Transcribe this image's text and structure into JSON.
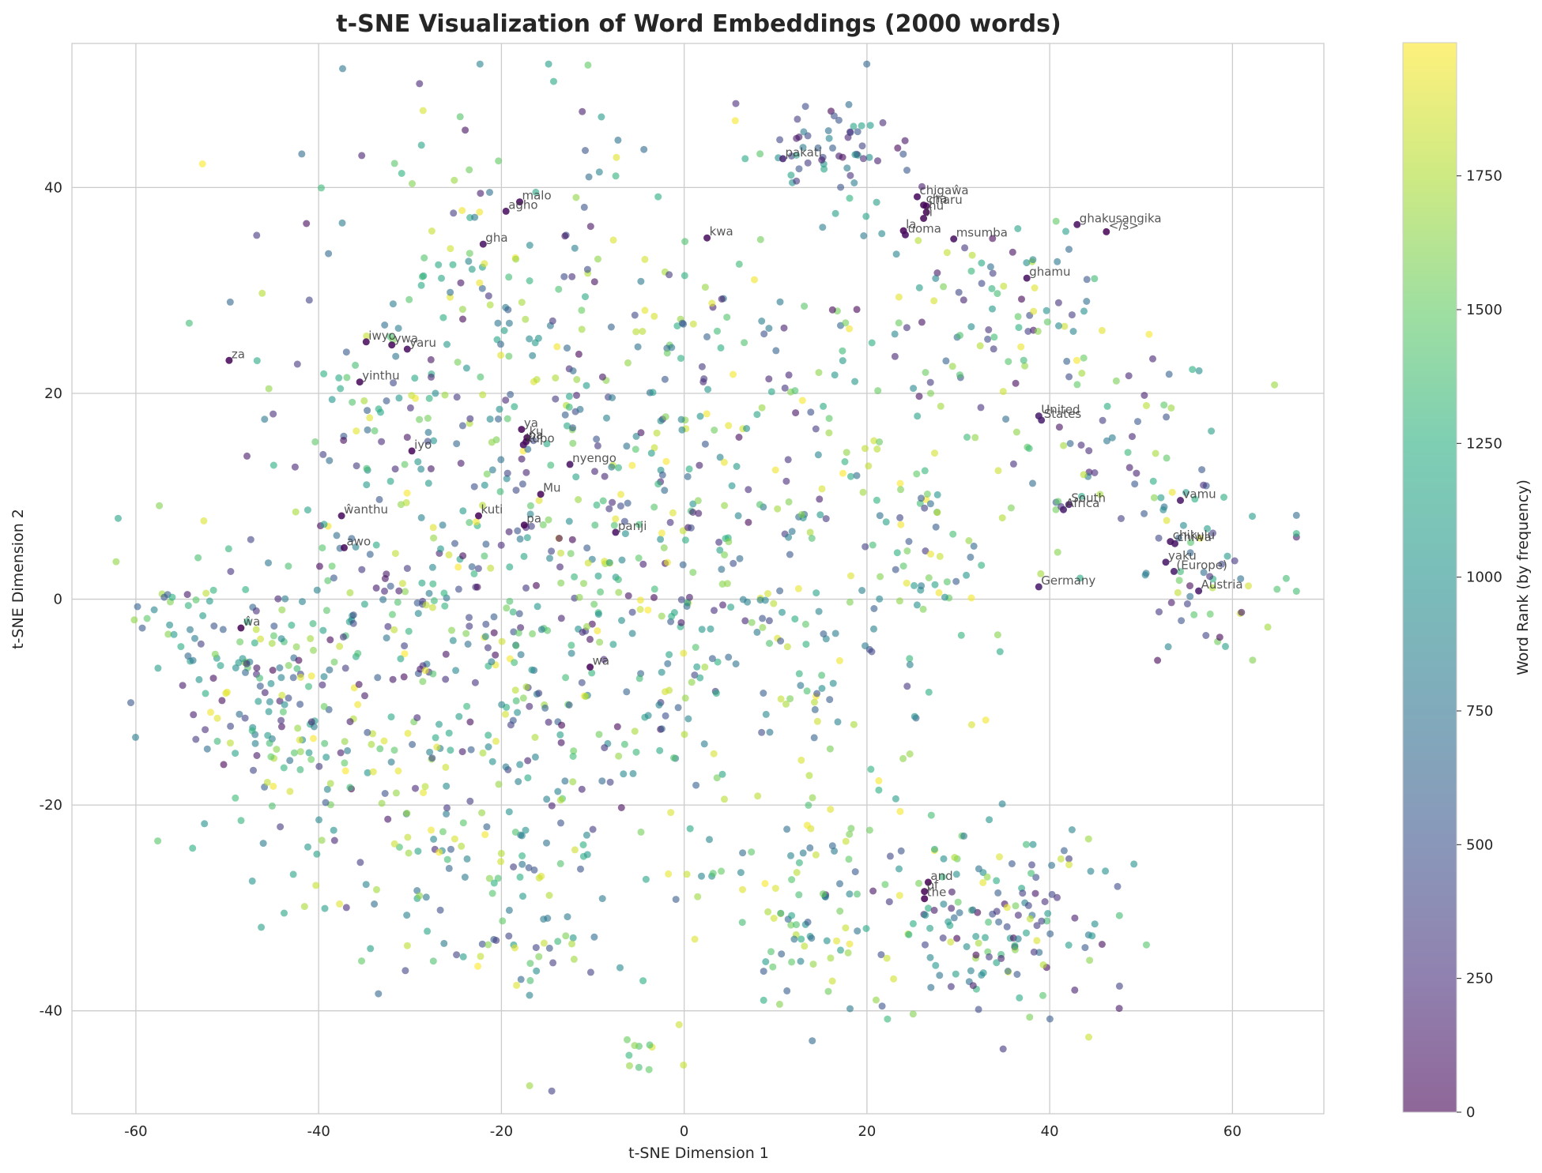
{
  "chart_data": {
    "type": "scatter",
    "title": "t-SNE Visualization of Word Embeddings (2000 words)",
    "xlabel": "t-SNE Dimension 1",
    "ylabel": "t-SNE Dimension 2",
    "xlim": [
      -67,
      70
    ],
    "ylim": [
      -50,
      54
    ],
    "x_ticks": [
      -60,
      -40,
      -20,
      0,
      20,
      40,
      60
    ],
    "y_ticks": [
      -40,
      -20,
      0,
      20,
      40
    ],
    "x_tick_labels": [
      "-60",
      "-40",
      "-20",
      "0",
      "20",
      "40",
      "60"
    ],
    "y_tick_labels": [
      "-40",
      "-20",
      "0",
      "20",
      "40"
    ],
    "grid": true,
    "colorbar": {
      "label": "Word Rank (by frequency)",
      "colormap": "viridis",
      "range": [
        0,
        1999
      ],
      "ticks": [
        0,
        250,
        500,
        750,
        1000,
        1250,
        1500,
        1750
      ],
      "tick_labels": [
        "0",
        "250",
        "500",
        "750",
        "1000",
        "1250",
        "1500",
        "1750"
      ]
    },
    "point_count": 2000,
    "marker_alpha": 0.6,
    "clusters": [
      {
        "cx": -22,
        "cy": 22,
        "sx": 12,
        "sy": 14,
        "n": 260,
        "rank": [
          0,
          1999
        ]
      },
      {
        "cx": -28,
        "cy": -8,
        "sx": 12,
        "sy": 12,
        "n": 300,
        "rank": [
          0,
          1999
        ]
      },
      {
        "cx": -8,
        "cy": 2,
        "sx": 10,
        "sy": 14,
        "n": 220,
        "rank": [
          0,
          1999
        ]
      },
      {
        "cx": 10,
        "cy": 20,
        "sx": 9,
        "sy": 12,
        "n": 130,
        "rank": [
          0,
          1999
        ]
      },
      {
        "cx": 17,
        "cy": 44,
        "sx": 3.5,
        "sy": 2.2,
        "n": 55,
        "rank": [
          0,
          1200
        ]
      },
      {
        "cx": 33,
        "cy": 27,
        "sx": 7,
        "sy": 5,
        "n": 90,
        "rank": [
          0,
          1999
        ]
      },
      {
        "cx": 48,
        "cy": 14,
        "sx": 6,
        "sy": 5,
        "n": 60,
        "rank": [
          0,
          1999
        ]
      },
      {
        "cx": 57,
        "cy": 2,
        "sx": 5,
        "sy": 4,
        "n": 50,
        "rank": [
          0,
          1999
        ]
      },
      {
        "cx": 35,
        "cy": -31,
        "sx": 7,
        "sy": 5,
        "n": 150,
        "rank": [
          0,
          1999
        ]
      },
      {
        "cx": 13,
        "cy": -30,
        "sx": 6,
        "sy": 5,
        "n": 90,
        "rank": [
          500,
          1999
        ]
      },
      {
        "cx": 12,
        "cy": -5,
        "sx": 8,
        "sy": 8,
        "n": 110,
        "rank": [
          300,
          1999
        ]
      },
      {
        "cx": -45,
        "cy": -10,
        "sx": 5,
        "sy": 7,
        "n": 110,
        "rank": [
          0,
          1999
        ]
      },
      {
        "cx": -20,
        "cy": -30,
        "sx": 8,
        "sy": 6,
        "n": 90,
        "rank": [
          300,
          1999
        ]
      },
      {
        "cx": 27,
        "cy": 5,
        "sx": 5,
        "sy": 4,
        "n": 50,
        "rank": [
          300,
          1999
        ]
      },
      {
        "cx": -55,
        "cy": -2,
        "sx": 4,
        "sy": 3,
        "n": 35,
        "rank": [
          500,
          1800
        ]
      },
      {
        "cx": -5,
        "cy": -44,
        "sx": 2,
        "sy": 1.5,
        "n": 10,
        "rank": [
          1200,
          1900
        ]
      }
    ],
    "annotations": [
      {
        "text": "pakati",
        "x": 10.8,
        "y": 42.8,
        "rank": 200
      },
      {
        "text": "malo",
        "x": -18,
        "y": 38.6,
        "rank": 40
      },
      {
        "text": "agho",
        "x": -19.5,
        "y": 37.7,
        "rank": 50
      },
      {
        "text": "gha",
        "x": -22,
        "y": 34.5,
        "rank": 80
      },
      {
        "text": "kwa",
        "x": 2.5,
        "y": 35.1,
        "rank": 60
      },
      {
        "text": "chigaŵa",
        "x": 25.5,
        "y": 39.1,
        "rank": 30
      },
      {
        "text": "cha",
        "x": 26.2,
        "y": 38.3,
        "rank": 8
      },
      {
        "text": "charu",
        "x": 26.5,
        "y": 38.2,
        "rank": 20
      },
      {
        "text": "nu",
        "x": 26.5,
        "y": 37.6,
        "rank": 15
      },
      {
        "text": "li",
        "x": 26.2,
        "y": 37.0,
        "rank": 25
      },
      {
        "text": "la",
        "x": 24,
        "y": 35.8,
        "rank": 12
      },
      {
        "text": "uoma",
        "x": 24.2,
        "y": 35.4,
        "rank": 70
      },
      {
        "text": "msumba",
        "x": 29.5,
        "y": 35.0,
        "rank": 90
      },
      {
        "text": "ghakusangika",
        "x": 43,
        "y": 36.4,
        "rank": 60
      },
      {
        "text": "</s>",
        "x": 46.2,
        "y": 35.7,
        "rank": 1
      },
      {
        "text": "ghamu",
        "x": 37.5,
        "y": 31.2,
        "rank": 70
      },
      {
        "text": "iwyo",
        "x": -34.8,
        "y": 25,
        "rank": 45
      },
      {
        "text": "ywa",
        "x": -32,
        "y": 24.7,
        "rank": 30
      },
      {
        "text": "yaru",
        "x": -30.3,
        "y": 24.3,
        "rank": 55
      },
      {
        "text": "za",
        "x": -49.8,
        "y": 23.2,
        "rank": 10
      },
      {
        "text": "yinthu",
        "x": -35.5,
        "y": 21.1,
        "rank": 35
      },
      {
        "text": "United",
        "x": 38.8,
        "y": 17.8,
        "rank": 150
      },
      {
        "text": "States",
        "x": 39.1,
        "y": 17.4,
        "rank": 160
      },
      {
        "text": "ya",
        "x": -17.8,
        "y": 16.5,
        "rank": 5
      },
      {
        "text": "ku",
        "x": -17.2,
        "y": 15.7,
        "rank": 6
      },
      {
        "text": "pa",
        "x": -17.3,
        "y": 15.3,
        "rank": 22
      },
      {
        "text": "kupo",
        "x": -17.6,
        "y": 15.0,
        "rank": 65
      },
      {
        "text": "nyengo",
        "x": -12.5,
        "y": 13.1,
        "rank": 85
      },
      {
        "text": "iyo",
        "x": -29.8,
        "y": 14.4,
        "rank": 28
      },
      {
        "text": "Mu",
        "x": -15.7,
        "y": 10.2,
        "rank": 18
      },
      {
        "text": "South",
        "x": 42.1,
        "y": 9.2,
        "rank": 140
      },
      {
        "text": "Africa",
        "x": 41.5,
        "y": 8.7,
        "rank": 145
      },
      {
        "text": "vamu",
        "x": 54.3,
        "y": 9.6,
        "rank": 100
      },
      {
        "text": "ŵanthu",
        "x": -37.5,
        "y": 8.1,
        "rank": 40
      },
      {
        "text": "kuti",
        "x": -22.5,
        "y": 8.1,
        "rank": 14
      },
      {
        "text": "pa",
        "x": -17.5,
        "y": 7.2,
        "rank": 22
      },
      {
        "text": "panji",
        "x": -7.5,
        "y": 6.5,
        "rank": 75
      },
      {
        "text": "chikulu",
        "x": 53.2,
        "y": 5.6,
        "rank": 90
      },
      {
        "text": "chiwa",
        "x": 53.7,
        "y": 5.4,
        "rank": 100
      },
      {
        "text": "awo",
        "x": -37.2,
        "y": 5.0,
        "rank": 35
      },
      {
        "text": "yaku",
        "x": 52.7,
        "y": 3.6,
        "rank": 110
      },
      {
        "text": "(Europe)",
        "x": 53.6,
        "y": 2.7,
        "rank": 130
      },
      {
        "text": "Germany",
        "x": 38.8,
        "y": 1.2,
        "rank": 120
      },
      {
        "text": "Austria",
        "x": 56.3,
        "y": 0.8,
        "rank": 125
      },
      {
        "text": "ŵa",
        "x": -48.5,
        "y": -2.8,
        "rank": 9
      },
      {
        "text": "wa",
        "x": -10.3,
        "y": -6.6,
        "rank": 4
      },
      {
        "text": "and",
        "x": 26.7,
        "y": -27.5,
        "rank": 2
      },
      {
        "text": "of",
        "x": 26.3,
        "y": -28.4,
        "rank": 3
      },
      {
        "text": "the",
        "x": 26.3,
        "y": -29.1,
        "rank": 1
      }
    ]
  }
}
